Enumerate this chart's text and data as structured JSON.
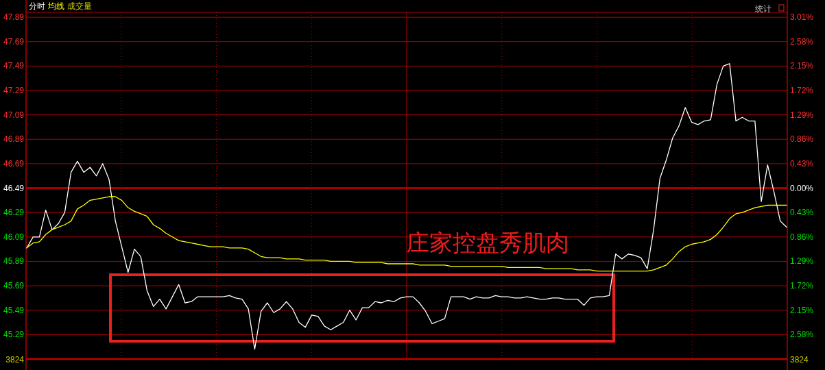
{
  "chart_data": {
    "type": "line",
    "categories": [
      null,
      null,
      null,
      null,
      null,
      null,
      null,
      null,
      null,
      null,
      null,
      null,
      null,
      null,
      null,
      null,
      null,
      null,
      null,
      null,
      null,
      null,
      null,
      null,
      null,
      null,
      null,
      null,
      null,
      null,
      null,
      null,
      null,
      null,
      null,
      null,
      null,
      null,
      null,
      null,
      null,
      null,
      null,
      null,
      null,
      null,
      null,
      null,
      null,
      null,
      null,
      null,
      null,
      null,
      null,
      null,
      null,
      null,
      null,
      null,
      null,
      null,
      null,
      null,
      null,
      null,
      null,
      null,
      null,
      null,
      null,
      null,
      null,
      null,
      null,
      null,
      null,
      null,
      null,
      null,
      null,
      null,
      null,
      null,
      null,
      null,
      null,
      null,
      null,
      null,
      null,
      null,
      null,
      null,
      null,
      null,
      null,
      null,
      null,
      null,
      null,
      null,
      null,
      null,
      null,
      null,
      null,
      null,
      null,
      null,
      null,
      null,
      null,
      null,
      null,
      null,
      null,
      null,
      null,
      null,
      null
    ],
    "series": [
      {
        "name": "分时",
        "color": "#ffffff",
        "values": [
          46.0,
          46.09,
          46.09,
          46.31,
          46.15,
          46.2,
          46.29,
          46.62,
          46.71,
          46.62,
          46.66,
          46.59,
          46.69,
          46.56,
          46.22,
          46.01,
          45.8,
          45.99,
          45.93,
          45.65,
          45.52,
          45.58,
          45.5,
          45.6,
          45.7,
          45.55,
          45.56,
          45.6,
          45.6,
          45.6,
          45.6,
          45.6,
          45.61,
          45.59,
          45.58,
          45.5,
          45.17,
          45.48,
          45.55,
          45.47,
          45.5,
          45.56,
          45.5,
          45.39,
          45.35,
          45.45,
          45.44,
          45.36,
          45.33,
          45.36,
          45.39,
          45.49,
          45.41,
          45.51,
          45.51,
          45.56,
          45.55,
          45.57,
          45.56,
          45.59,
          45.6,
          45.6,
          45.55,
          45.48,
          45.38,
          45.4,
          45.42,
          45.6,
          45.6,
          45.6,
          45.58,
          45.6,
          45.59,
          45.59,
          45.61,
          45.6,
          45.6,
          45.59,
          45.59,
          45.6,
          45.59,
          45.58,
          45.58,
          45.59,
          45.59,
          45.58,
          45.58,
          45.58,
          45.53,
          45.59,
          45.6,
          45.6,
          45.61,
          45.95,
          45.91,
          45.95,
          45.94,
          45.92,
          45.83,
          46.15,
          46.57,
          46.72,
          46.9,
          47.0,
          47.15,
          47.03,
          47.01,
          47.04,
          47.05,
          47.34,
          47.49,
          47.51,
          47.04,
          47.07,
          47.04,
          47.04,
          46.38,
          46.68,
          46.46,
          46.22,
          46.17
        ]
      },
      {
        "name": "均线",
        "color": "#ffff00",
        "values": [
          46.0,
          46.04,
          46.05,
          46.11,
          46.15,
          46.17,
          46.19,
          46.22,
          46.32,
          46.35,
          46.39,
          46.4,
          46.41,
          46.42,
          46.42,
          46.39,
          46.33,
          46.3,
          46.28,
          46.26,
          46.19,
          46.16,
          46.12,
          46.09,
          46.06,
          46.05,
          46.04,
          46.03,
          46.02,
          46.01,
          46.01,
          46.01,
          46.0,
          46.0,
          46.0,
          45.99,
          45.96,
          45.93,
          45.92,
          45.92,
          45.92,
          45.91,
          45.91,
          45.91,
          45.9,
          45.9,
          45.9,
          45.9,
          45.89,
          45.89,
          45.89,
          45.89,
          45.88,
          45.88,
          45.88,
          45.88,
          45.88,
          45.87,
          45.87,
          45.87,
          45.87,
          45.87,
          45.86,
          45.86,
          45.86,
          45.86,
          45.86,
          45.85,
          45.85,
          45.85,
          45.85,
          45.85,
          45.85,
          45.85,
          45.85,
          45.85,
          45.84,
          45.84,
          45.84,
          45.84,
          45.84,
          45.84,
          45.83,
          45.83,
          45.83,
          45.83,
          45.83,
          45.82,
          45.82,
          45.82,
          45.81,
          45.81,
          45.81,
          45.81,
          45.81,
          45.81,
          45.81,
          45.81,
          45.81,
          45.82,
          45.84,
          45.86,
          45.91,
          45.97,
          46.01,
          46.03,
          46.04,
          46.05,
          46.07,
          46.11,
          46.17,
          46.24,
          46.28,
          46.29,
          46.31,
          46.33,
          46.34,
          46.35,
          46.35,
          46.35,
          46.35
        ]
      }
    ],
    "ylim": [
      45.0,
      47.93
    ],
    "yticks": [
      47.89,
      47.69,
      47.49,
      47.29,
      47.09,
      46.89,
      46.69,
      46.49,
      46.29,
      46.09,
      45.89,
      45.69,
      45.49,
      45.29
    ],
    "y2lim": [
      -3.205,
      3.097
    ],
    "y2ticks": [
      {
        "value": 3.01,
        "label": "3.01%"
      },
      {
        "value": 2.58,
        "label": "2.58%"
      },
      {
        "value": 2.15,
        "label": "2.15%"
      },
      {
        "value": 1.72,
        "label": "1.72%"
      },
      {
        "value": 1.29,
        "label": "1.29%"
      },
      {
        "value": 0.86,
        "label": "0.86%"
      },
      {
        "value": 0.43,
        "label": "0.43%"
      },
      {
        "value": 0,
        "label": "0.00%"
      },
      {
        "value": -0.43,
        "label": "0.43%"
      },
      {
        "value": -0.86,
        "label": "0.86%"
      },
      {
        "value": -1.29,
        "label": "1.29%"
      },
      {
        "value": -1.72,
        "label": "1.72%"
      },
      {
        "value": -2.15,
        "label": "2.15%"
      },
      {
        "value": -2.58,
        "label": "2.58%"
      }
    ],
    "ref_lines": [
      {
        "axis": "y2",
        "value": 0,
        "color": "#c80000"
      },
      {
        "axis": "y",
        "value": 45.09,
        "color": "#c00000"
      }
    ],
    "grid": true,
    "marker": "none",
    "annotations": [
      "成交量",
      "统计",
      "庄家控盘秀肌肉",
      "3824",
      "3824"
    ]
  }
}
